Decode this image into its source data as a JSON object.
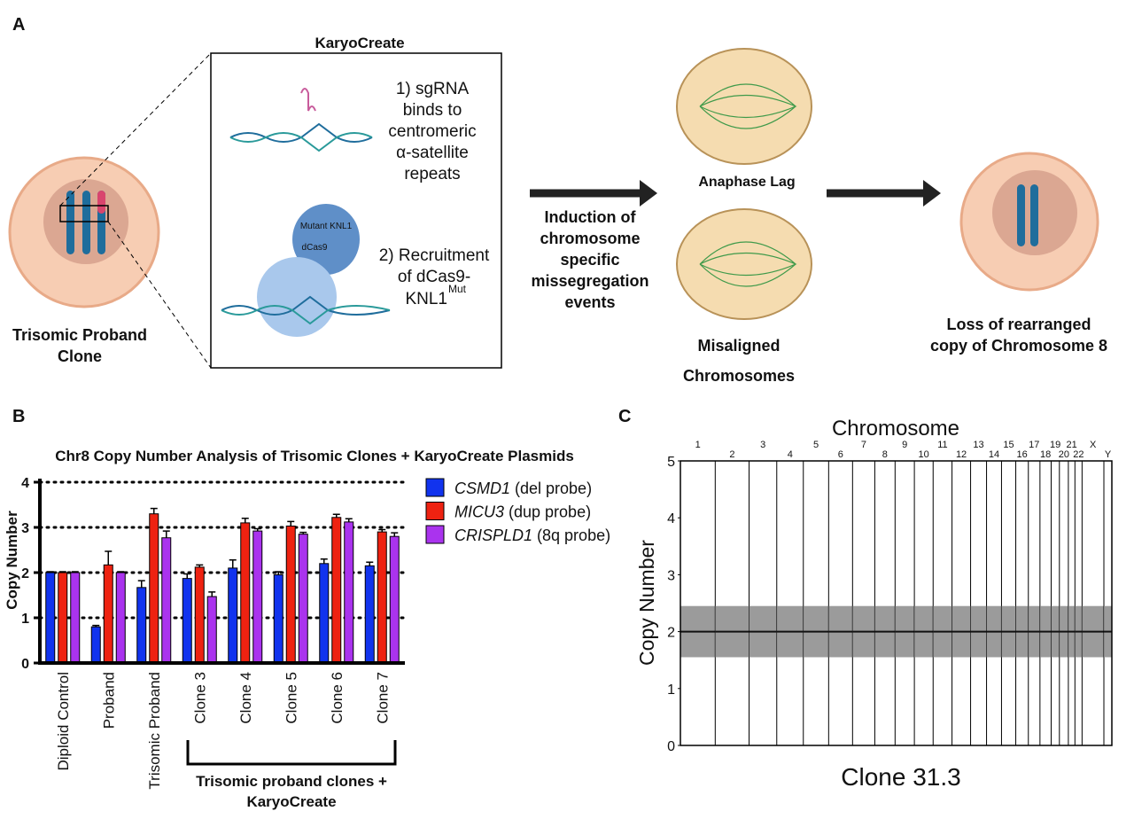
{
  "panel_a": {
    "label": "A",
    "box_title": "KaryoCreate",
    "step1_lines": [
      "1) sgRNA",
      "binds to",
      "centromeric",
      "α-satellite",
      "repeats"
    ],
    "protein_labels": [
      "Mutant KNL1",
      "dCas9"
    ],
    "step2_lines": [
      "2) Recruitment",
      "of dCas9-",
      "KNL1"
    ],
    "step2_superscript": "Mut",
    "start_cell_lines": [
      "Trisomic Proband",
      "Clone"
    ],
    "arrow_lines": [
      "Induction of",
      "chromosome",
      "specific",
      "missegregation",
      "events"
    ],
    "event1": "Anaphase Lag",
    "event2_lines": [
      "Misaligned",
      "Chromosomes"
    ],
    "end_cell_lines": [
      "Loss of rearranged",
      "copy of Chromosome 8"
    ]
  },
  "panel_b": {
    "label": "B",
    "bracket_lines": [
      "Trisomic proband clones +",
      "KaryoCreate"
    ],
    "chart_data": {
      "type": "bar",
      "title": "Chr8 Copy Number Analysis of Trisomic Clones + KaryoCreate Plasmids",
      "y_label": "Copy Number",
      "categories": [
        "Diploid Control",
        "Proband",
        "Trisomic Proband",
        "Clone 3",
        "Clone 4",
        "Clone 5",
        "Clone 6",
        "Clone 7"
      ],
      "series": [
        {
          "name": "CSMD1",
          "probe": "(del probe)",
          "color": "#1133ee",
          "values": [
            2.0,
            0.8,
            1.67,
            1.87,
            2.1,
            1.95,
            2.2,
            2.15
          ],
          "errors": [
            0.02,
            0.03,
            0.15,
            0.1,
            0.18,
            0.07,
            0.1,
            0.08
          ]
        },
        {
          "name": "MICU3",
          "probe": "(dup probe)",
          "color": "#ee2211",
          "values": [
            2.0,
            2.17,
            3.3,
            2.12,
            3.1,
            3.03,
            3.22,
            2.9
          ],
          "errors": [
            0.02,
            0.3,
            0.12,
            0.05,
            0.1,
            0.1,
            0.07,
            0.05
          ]
        },
        {
          "name": "CRISPLD1",
          "probe": "(8q probe)",
          "color": "#aa33ee",
          "values": [
            2.0,
            2.0,
            2.77,
            1.47,
            2.92,
            2.85,
            3.12,
            2.8
          ],
          "errors": [
            0.02,
            0.02,
            0.15,
            0.1,
            0.05,
            0.04,
            0.07,
            0.08
          ]
        }
      ],
      "ylim": [
        0,
        4
      ],
      "yticks": [
        0,
        1,
        2,
        3,
        4
      ],
      "grid": true
    }
  },
  "panel_c": {
    "label": "C",
    "chart_data": {
      "type": "segment",
      "title": "Chromosome",
      "y_label": "Copy Number",
      "x_label": "Clone 31.3",
      "categories": [
        "1",
        "2",
        "3",
        "4",
        "5",
        "6",
        "7",
        "8",
        "9",
        "10",
        "11",
        "12",
        "13",
        "14",
        "15",
        "16",
        "17",
        "18",
        "19",
        "20",
        "21",
        "22",
        "X",
        "Y"
      ],
      "values": [
        2,
        2,
        2,
        2,
        2,
        2,
        2,
        2,
        2,
        2,
        2,
        2,
        2,
        2,
        2,
        2,
        2,
        2,
        2,
        2,
        2,
        2,
        2,
        2
      ],
      "ylim": [
        0,
        5
      ],
      "yticks": [
        0,
        1,
        2,
        3,
        4,
        5
      ],
      "color": "#111111"
    }
  }
}
